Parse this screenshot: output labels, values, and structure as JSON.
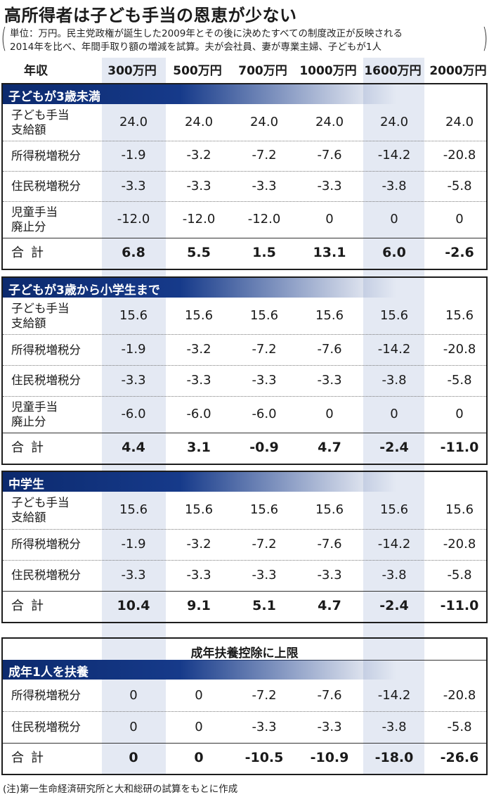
{
  "title": "高所得者は子ども手当の恩恵が少ない",
  "notes": [
    "単位：万円。民主党政権が誕生した2009年とその後に決めたすべての制度改正が反映される",
    "2014年を比べ、年間手取り額の増減を試算。夫が会社員、妻が専業主婦、子どもが1人"
  ],
  "footnote": "(注)第一生命経済研究所と大和総研の試算をもとに作成",
  "shade_color": "#e4e9f3",
  "bar_color": "#163a8a",
  "chart_data": {
    "type": "table",
    "header_label": "年収",
    "columns": [
      "300万円",
      "500万円",
      "700万円",
      "1000万円",
      "1600万円",
      "2000万円"
    ],
    "sections": [
      {
        "name": "子どもが3歳未満",
        "rows": [
          {
            "label": [
              "子ども手当",
              "支給額"
            ],
            "values": [
              "24.0",
              "24.0",
              "24.0",
              "24.0",
              "24.0",
              "24.0"
            ]
          },
          {
            "label": [
              "所得税増税分"
            ],
            "values": [
              "-1.9",
              "-3.2",
              "-7.2",
              "-7.6",
              "-14.2",
              "-20.8"
            ]
          },
          {
            "label": [
              "住民税増税分"
            ],
            "values": [
              "-3.3",
              "-3.3",
              "-3.3",
              "-3.3",
              "-3.8",
              "-5.8"
            ]
          },
          {
            "label": [
              "児童手当",
              "廃止分"
            ],
            "values": [
              "-12.0",
              "-12.0",
              "-12.0",
              "0",
              "0",
              "0"
            ]
          }
        ],
        "total": {
          "label": "合計",
          "values": [
            "6.8",
            "5.5",
            "1.5",
            "13.1",
            "6.0",
            "-2.6"
          ]
        }
      },
      {
        "name": "子どもが3歳から小学生まで",
        "rows": [
          {
            "label": [
              "子ども手当",
              "支給額"
            ],
            "values": [
              "15.6",
              "15.6",
              "15.6",
              "15.6",
              "15.6",
              "15.6"
            ]
          },
          {
            "label": [
              "所得税増税分"
            ],
            "values": [
              "-1.9",
              "-3.2",
              "-7.2",
              "-7.6",
              "-14.2",
              "-20.8"
            ]
          },
          {
            "label": [
              "住民税増税分"
            ],
            "values": [
              "-3.3",
              "-3.3",
              "-3.3",
              "-3.3",
              "-3.8",
              "-5.8"
            ]
          },
          {
            "label": [
              "児童手当",
              "廃止分"
            ],
            "values": [
              "-6.0",
              "-6.0",
              "-6.0",
              "0",
              "0",
              "0"
            ]
          }
        ],
        "total": {
          "label": "合計",
          "values": [
            "4.4",
            "3.1",
            "-0.9",
            "4.7",
            "-2.4",
            "-11.0"
          ]
        }
      },
      {
        "name": "中学生",
        "rows": [
          {
            "label": [
              "子ども手当",
              "支給額"
            ],
            "values": [
              "15.6",
              "15.6",
              "15.6",
              "15.6",
              "15.6",
              "15.6"
            ]
          },
          {
            "label": [
              "所得税増税分"
            ],
            "values": [
              "-1.9",
              "-3.2",
              "-7.2",
              "-7.6",
              "-14.2",
              "-20.8"
            ]
          },
          {
            "label": [
              "住民税増税分"
            ],
            "values": [
              "-3.3",
              "-3.3",
              "-3.3",
              "-3.3",
              "-3.8",
              "-5.8"
            ]
          }
        ],
        "total": {
          "label": "合計",
          "values": [
            "10.4",
            "9.1",
            "5.1",
            "4.7",
            "-2.4",
            "-11.0"
          ]
        }
      },
      {
        "title": "成年扶養控除に上限",
        "name": "成年1人を扶養",
        "rows": [
          {
            "label": [
              "所得税増税分"
            ],
            "values": [
              "0",
              "0",
              "-7.2",
              "-7.6",
              "-14.2",
              "-20.8"
            ]
          },
          {
            "label": [
              "住民税増税分"
            ],
            "values": [
              "0",
              "0",
              "-3.3",
              "-3.3",
              "-3.8",
              "-5.8"
            ]
          }
        ],
        "total": {
          "label": "合計",
          "values": [
            "0",
            "0",
            "-10.5",
            "-10.9",
            "-18.0",
            "-26.6"
          ]
        }
      }
    ]
  }
}
